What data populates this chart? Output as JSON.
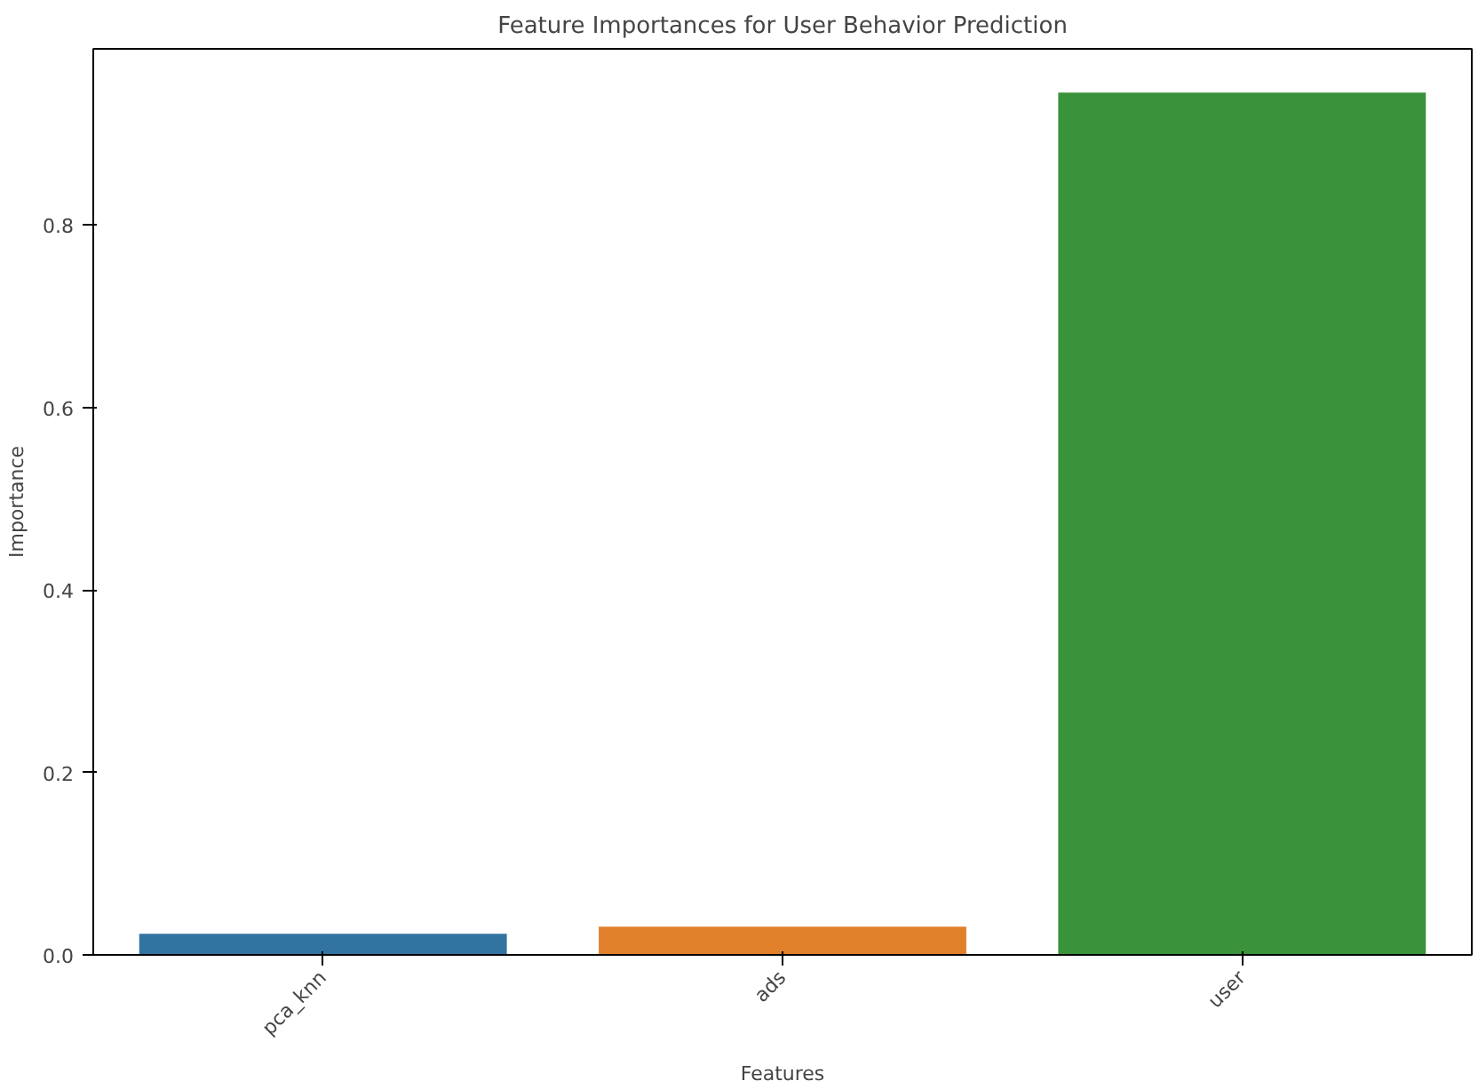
{
  "chart_data": {
    "type": "bar",
    "title": "Feature Importances for User Behavior Prediction",
    "xlabel": "Features",
    "ylabel": "Importance",
    "categories": [
      "pca_knn",
      "ads",
      "user"
    ],
    "values": [
      0.023,
      0.031,
      0.945
    ],
    "colors": [
      "#3274a1",
      "#e1812c",
      "#3a923a"
    ],
    "ylim": [
      0,
      0.993
    ],
    "yticks": [
      {
        "value": 0,
        "label": "0.0"
      },
      0.2,
      0.4,
      0.6,
      0.8
    ],
    "grid": false
  }
}
